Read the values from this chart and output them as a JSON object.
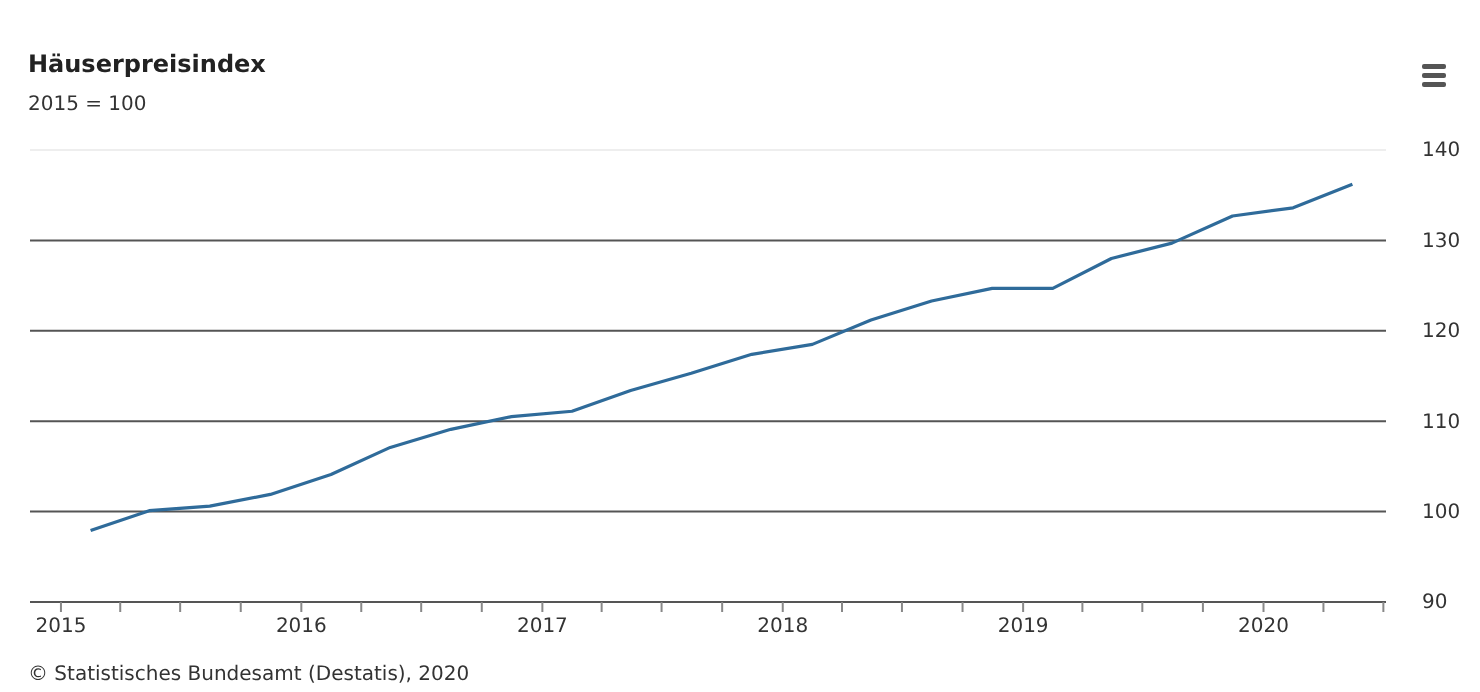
{
  "chart_data": {
    "type": "line",
    "title": "Häuserpreisindex",
    "subtitle": "2015 = 100",
    "annotations": [
      "© Statistisches Bundesamt (Destatis), 2020"
    ],
    "x": [
      "2015-02-15",
      "2015-05-15",
      "2015-08-15",
      "2015-11-15",
      "2016-02-15",
      "2016-05-15",
      "2016-08-15",
      "2016-11-15",
      "2017-02-15",
      "2017-05-15",
      "2017-08-15",
      "2017-11-15",
      "2018-02-15",
      "2018-05-15",
      "2018-08-15",
      "2018-11-15",
      "2019-02-15",
      "2019-05-15",
      "2019-08-15",
      "2019-11-15",
      "2020-02-15",
      "2020-05-15"
    ],
    "series": [
      {
        "color": "#2f6b9a",
        "values": [
          97.9,
          100.1,
          100.6,
          101.9,
          104.1,
          107.1,
          109.1,
          110.5,
          111.1,
          113.4,
          115.3,
          117.4,
          118.5,
          121.2,
          123.3,
          124.7,
          124.7,
          128.0,
          129.7,
          132.7,
          133.6,
          136.2
        ]
      }
    ],
    "xlim": [
      "2014-11-15",
      "2020-07-05"
    ],
    "xticks": [
      {
        "value": "2015",
        "label": "2015"
      },
      {
        "value": "2015-04",
        "label": null
      },
      {
        "value": "2015-07",
        "label": null
      },
      {
        "value": "2015-10",
        "label": null
      },
      {
        "value": "2016",
        "label": "2016"
      },
      {
        "value": "2016-04",
        "label": null
      },
      {
        "value": "2016-07",
        "label": null
      },
      {
        "value": "2016-10",
        "label": null
      },
      {
        "value": "2017",
        "label": "2017"
      },
      {
        "value": "2017-04",
        "label": null
      },
      {
        "value": "2017-07",
        "label": null
      },
      {
        "value": "2017-10",
        "label": null
      },
      {
        "value": "2018",
        "label": "2018"
      },
      {
        "value": "2018-04",
        "label": null
      },
      {
        "value": "2018-07",
        "label": null
      },
      {
        "value": "2018-10",
        "label": null
      },
      {
        "value": "2019",
        "label": "2019"
      },
      {
        "value": "2019-04",
        "label": null
      },
      {
        "value": "2019-07",
        "label": null
      },
      {
        "value": "2019-10",
        "label": null
      },
      {
        "value": "2020",
        "label": "2020"
      },
      {
        "value": "2020-04",
        "label": null
      },
      {
        "value": "2020-07",
        "label": null
      }
    ],
    "ylim": [
      90,
      140
    ],
    "yticks": [
      90,
      100,
      110,
      120,
      130,
      140
    ],
    "grid": "y",
    "marker": "none",
    "line_style": "solid"
  }
}
